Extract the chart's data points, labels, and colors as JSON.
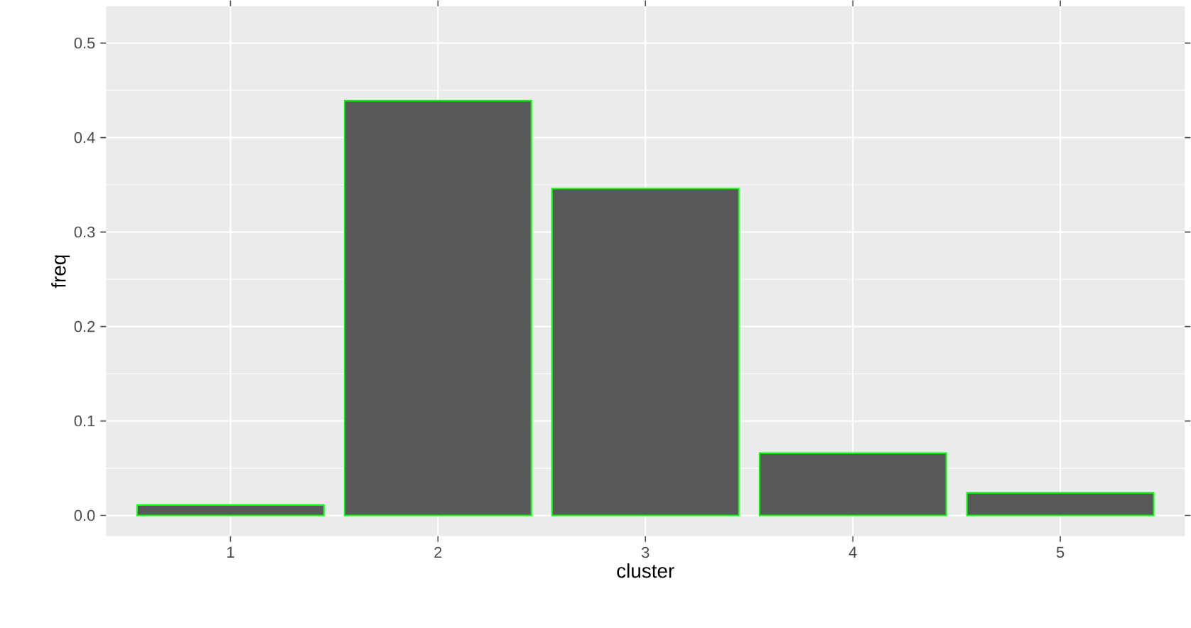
{
  "chart_data": {
    "type": "bar",
    "xlabel": "cluster",
    "ylabel": "freq",
    "categories": [
      "1",
      "2",
      "3",
      "4",
      "5"
    ],
    "values": [
      0.011,
      0.439,
      0.346,
      0.066,
      0.024
    ],
    "color": "#595959",
    "ylim": [
      -0.022,
      0.539
    ],
    "yticks": [
      {
        "value": 0,
        "label": "0.0"
      },
      {
        "value": 0.1,
        "label": "0.1"
      },
      {
        "value": 0.2,
        "label": "0.2"
      },
      {
        "value": 0.3,
        "label": "0.3"
      },
      {
        "value": 0.4,
        "label": "0.4"
      },
      {
        "value": 0.5,
        "label": "0.5"
      }
    ],
    "grid": true
  }
}
